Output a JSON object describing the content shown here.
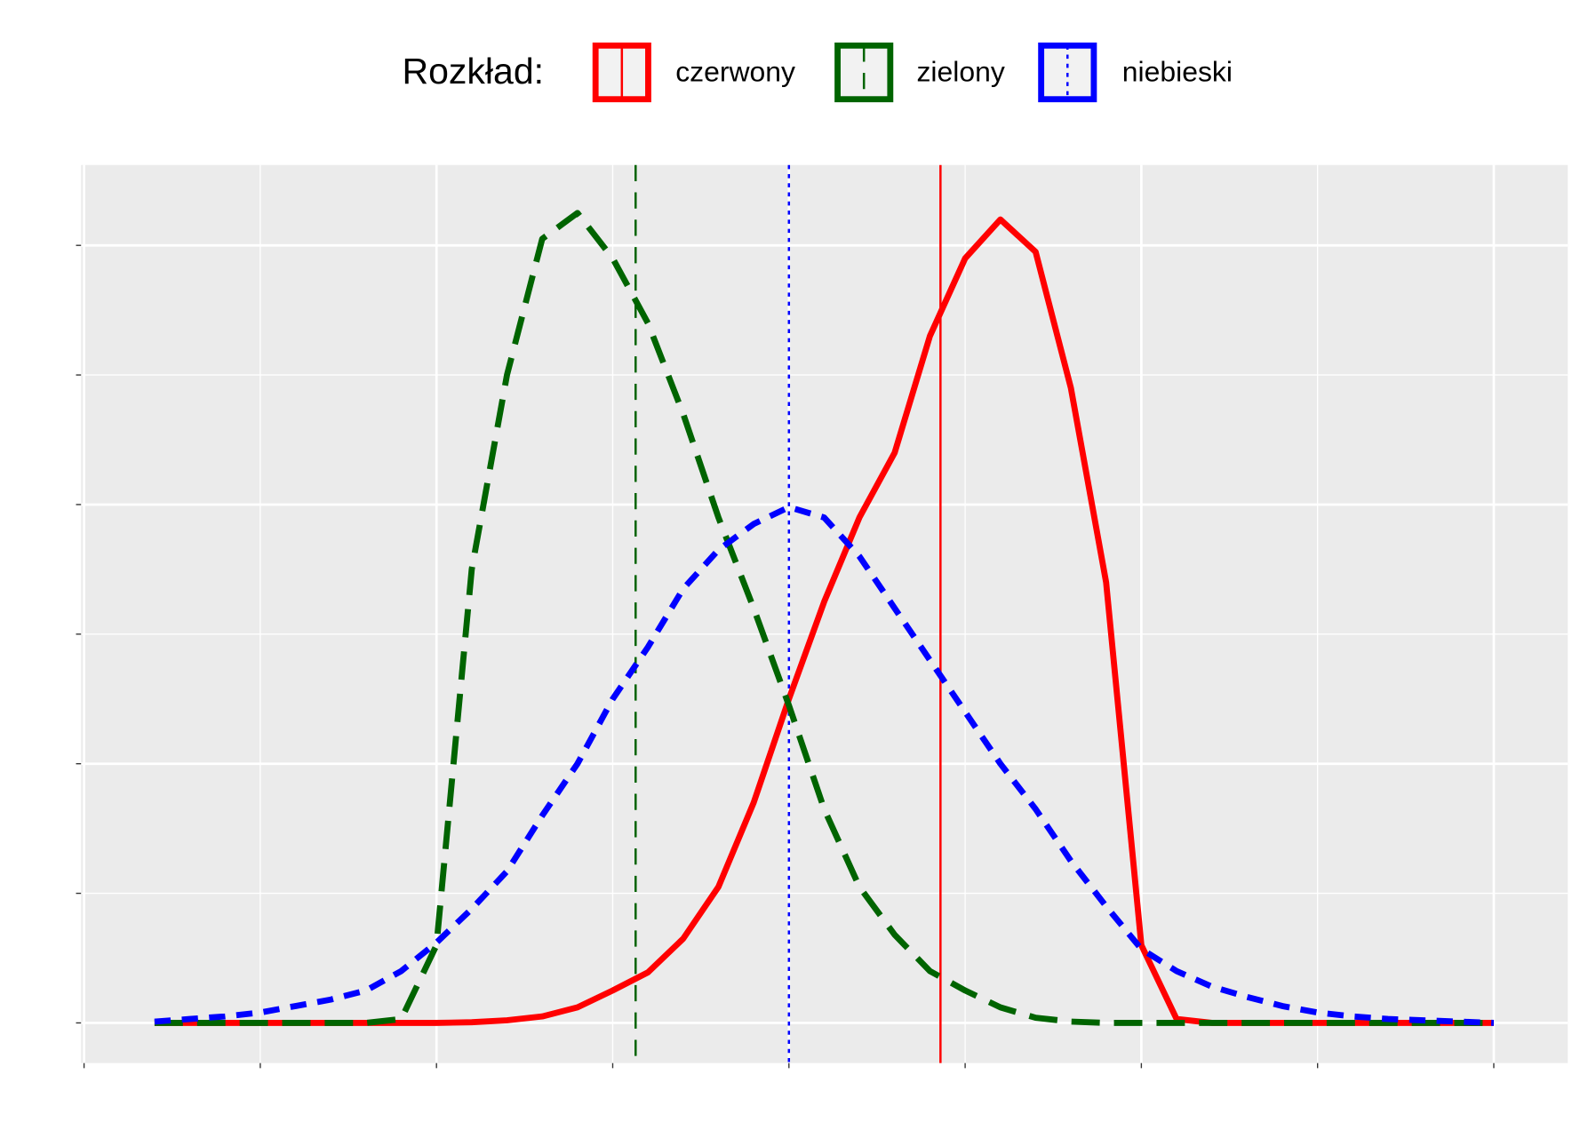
{
  "chart_data": {
    "type": "line",
    "legend_title": "Rozkład:",
    "legend": "top",
    "grid": true,
    "x": [
      0.4,
      0.6,
      0.8,
      1.0,
      1.2,
      1.4,
      1.6,
      1.8,
      2.0,
      2.2,
      2.4,
      2.6,
      2.8,
      3.0,
      3.2,
      3.4,
      3.6,
      3.8,
      4.0,
      4.2,
      4.4,
      4.6,
      4.8,
      5.0,
      5.2,
      5.4,
      5.6,
      5.8,
      6.0,
      6.2,
      6.4,
      6.6,
      6.8,
      7.0,
      7.2,
      7.4,
      7.6,
      7.8,
      8.0
    ],
    "series": [
      {
        "name": "czerwony",
        "color": "#ff0000",
        "dash": "solid",
        "mean_dash": "solid",
        "mean": 4.86,
        "values": [
          0,
          0,
          0,
          0,
          0,
          0,
          0,
          0,
          0,
          0.0005,
          0.002,
          0.005,
          0.012,
          0.025,
          0.039,
          0.065,
          0.105,
          0.17,
          0.25,
          0.325,
          0.39,
          0.44,
          0.53,
          0.59,
          0.62,
          0.595,
          0.49,
          0.34,
          0.06,
          0.003,
          0,
          0,
          0,
          0,
          0,
          0,
          0,
          0,
          0
        ]
      },
      {
        "name": "zielony",
        "color": "#006400",
        "dash": "longdash",
        "mean_dash": "dashed",
        "mean": 3.13,
        "values": [
          0,
          0,
          0,
          0,
          0,
          0,
          0,
          0.003,
          0.06,
          0.35,
          0.5,
          0.605,
          0.625,
          0.59,
          0.54,
          0.47,
          0.39,
          0.32,
          0.245,
          0.165,
          0.105,
          0.068,
          0.04,
          0.025,
          0.012,
          0.004,
          0.001,
          0,
          0,
          0,
          0,
          0,
          0,
          0,
          0,
          0,
          0,
          0,
          0
        ]
      },
      {
        "name": "niebieski",
        "color": "#0000ff",
        "dash": "dashed",
        "mean_dash": "dotted",
        "mean": 4.0,
        "values": [
          0.001,
          0.003,
          0.005,
          0.008,
          0.013,
          0.018,
          0.025,
          0.04,
          0.062,
          0.088,
          0.117,
          0.16,
          0.2,
          0.25,
          0.29,
          0.335,
          0.365,
          0.385,
          0.398,
          0.39,
          0.36,
          0.32,
          0.28,
          0.24,
          0.2,
          0.165,
          0.125,
          0.09,
          0.057,
          0.04,
          0.028,
          0.02,
          0.013,
          0.008,
          0.005,
          0.003,
          0.002,
          0.001,
          0
        ]
      }
    ],
    "xlim": [
      -0.017,
      8.42
    ],
    "ylim": [
      -0.031,
      0.662
    ],
    "xticks": [
      0,
      1,
      2,
      3,
      4,
      5,
      6,
      7,
      8
    ],
    "yticks": [
      0,
      0.1,
      0.2,
      0.3,
      0.4,
      0.5,
      0.6
    ]
  }
}
